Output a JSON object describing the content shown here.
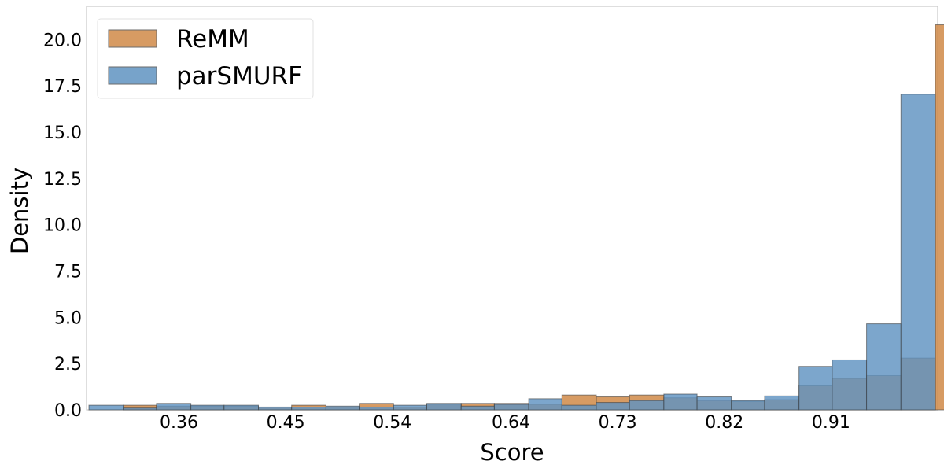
{
  "chart_data": {
    "type": "bar",
    "subtype": "overlapping-histogram",
    "xlabel": "Score",
    "ylabel": "Density",
    "xlim": [
      0.282,
      1.0
    ],
    "ylim": [
      0,
      21.8
    ],
    "xticks": [
      0.36,
      0.45,
      0.54,
      0.64,
      0.73,
      0.82,
      0.91
    ],
    "xtick_labels": [
      "0.36",
      "0.45",
      "0.54",
      "0.64",
      "0.73",
      "0.82",
      "0.91"
    ],
    "yticks": [
      0,
      2.5,
      5,
      7.5,
      10,
      12.5,
      15,
      17.5,
      20
    ],
    "ytick_labels": [
      "0.0",
      "2.5",
      "5.0",
      "7.5",
      "10.0",
      "12.5",
      "15.0",
      "17.5",
      "20.0"
    ],
    "grid": false,
    "legend_position": "top-left",
    "series": [
      {
        "name": "ReMM",
        "color": "#d08a48",
        "bins": [
          {
            "x0": 0.313,
            "x1": 0.341,
            "value": 0.25
          },
          {
            "x0": 0.341,
            "x1": 0.37,
            "value": 0.2
          },
          {
            "x0": 0.37,
            "x1": 0.398,
            "value": 0.2
          },
          {
            "x0": 0.398,
            "x1": 0.427,
            "value": 0.2
          },
          {
            "x0": 0.427,
            "x1": 0.455,
            "value": 0.15
          },
          {
            "x0": 0.455,
            "x1": 0.484,
            "value": 0.25
          },
          {
            "x0": 0.484,
            "x1": 0.512,
            "value": 0.15
          },
          {
            "x0": 0.512,
            "x1": 0.541,
            "value": 0.35
          },
          {
            "x0": 0.541,
            "x1": 0.569,
            "value": 0.15
          },
          {
            "x0": 0.569,
            "x1": 0.598,
            "value": 0.3
          },
          {
            "x0": 0.598,
            "x1": 0.626,
            "value": 0.35
          },
          {
            "x0": 0.626,
            "x1": 0.655,
            "value": 0.35
          },
          {
            "x0": 0.655,
            "x1": 0.683,
            "value": 0.3
          },
          {
            "x0": 0.683,
            "x1": 0.712,
            "value": 0.8
          },
          {
            "x0": 0.712,
            "x1": 0.74,
            "value": 0.7
          },
          {
            "x0": 0.74,
            "x1": 0.769,
            "value": 0.8
          },
          {
            "x0": 0.769,
            "x1": 0.797,
            "value": 0.65
          },
          {
            "x0": 0.797,
            "x1": 0.826,
            "value": 0.5
          },
          {
            "x0": 0.826,
            "x1": 0.854,
            "value": 0.45
          },
          {
            "x0": 0.854,
            "x1": 0.883,
            "value": 0.55
          },
          {
            "x0": 0.883,
            "x1": 0.911,
            "value": 1.3
          },
          {
            "x0": 0.911,
            "x1": 0.94,
            "value": 1.7
          },
          {
            "x0": 0.94,
            "x1": 0.969,
            "value": 1.85
          },
          {
            "x0": 0.969,
            "x1": 0.998,
            "value": 2.8
          },
          {
            "x0": 0.998,
            "x1": 1.027,
            "value": 20.8
          }
        ]
      },
      {
        "name": "parSMURF",
        "color": "#5f93c1",
        "bins": [
          {
            "x0": 0.284,
            "x1": 0.313,
            "value": 0.25
          },
          {
            "x0": 0.313,
            "x1": 0.341,
            "value": 0.1
          },
          {
            "x0": 0.341,
            "x1": 0.37,
            "value": 0.35
          },
          {
            "x0": 0.37,
            "x1": 0.398,
            "value": 0.25
          },
          {
            "x0": 0.398,
            "x1": 0.427,
            "value": 0.25
          },
          {
            "x0": 0.427,
            "x1": 0.455,
            "value": 0.15
          },
          {
            "x0": 0.455,
            "x1": 0.484,
            "value": 0.15
          },
          {
            "x0": 0.484,
            "x1": 0.512,
            "value": 0.2
          },
          {
            "x0": 0.512,
            "x1": 0.541,
            "value": 0.15
          },
          {
            "x0": 0.541,
            "x1": 0.569,
            "value": 0.25
          },
          {
            "x0": 0.569,
            "x1": 0.598,
            "value": 0.35
          },
          {
            "x0": 0.598,
            "x1": 0.626,
            "value": 0.2
          },
          {
            "x0": 0.626,
            "x1": 0.655,
            "value": 0.3
          },
          {
            "x0": 0.655,
            "x1": 0.683,
            "value": 0.6
          },
          {
            "x0": 0.683,
            "x1": 0.712,
            "value": 0.25
          },
          {
            "x0": 0.712,
            "x1": 0.74,
            "value": 0.4
          },
          {
            "x0": 0.74,
            "x1": 0.769,
            "value": 0.5
          },
          {
            "x0": 0.769,
            "x1": 0.797,
            "value": 0.85
          },
          {
            "x0": 0.797,
            "x1": 0.826,
            "value": 0.7
          },
          {
            "x0": 0.826,
            "x1": 0.854,
            "value": 0.5
          },
          {
            "x0": 0.854,
            "x1": 0.883,
            "value": 0.75
          },
          {
            "x0": 0.883,
            "x1": 0.911,
            "value": 2.35
          },
          {
            "x0": 0.911,
            "x1": 0.94,
            "value": 2.7
          },
          {
            "x0": 0.94,
            "x1": 0.969,
            "value": 4.65
          },
          {
            "x0": 0.969,
            "x1": 0.998,
            "value": 17.05
          }
        ]
      }
    ]
  }
}
